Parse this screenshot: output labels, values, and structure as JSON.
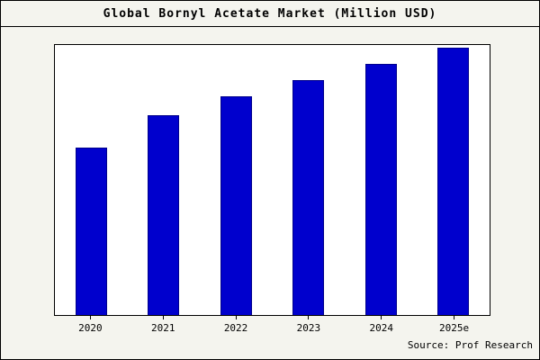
{
  "chart_data": {
    "type": "bar",
    "title": "Global Bornyl Acetate Market (Million USD)",
    "categories": [
      "2020",
      "2021",
      "2022",
      "2023",
      "2024",
      "2025e"
    ],
    "values": [
      62,
      74,
      81,
      87,
      93,
      99
    ],
    "xlabel": "",
    "ylabel": "",
    "ylim": [
      0,
      100
    ],
    "grid": false,
    "legend": false,
    "y_axis_labels_visible": false
  },
  "source": {
    "label": "Source: Prof Research"
  },
  "colors": {
    "bar_fill": "#0000cd",
    "bar_edge": "#00008b",
    "plot_bg": "#ffffff",
    "page_bg": "#f4f4ee"
  }
}
